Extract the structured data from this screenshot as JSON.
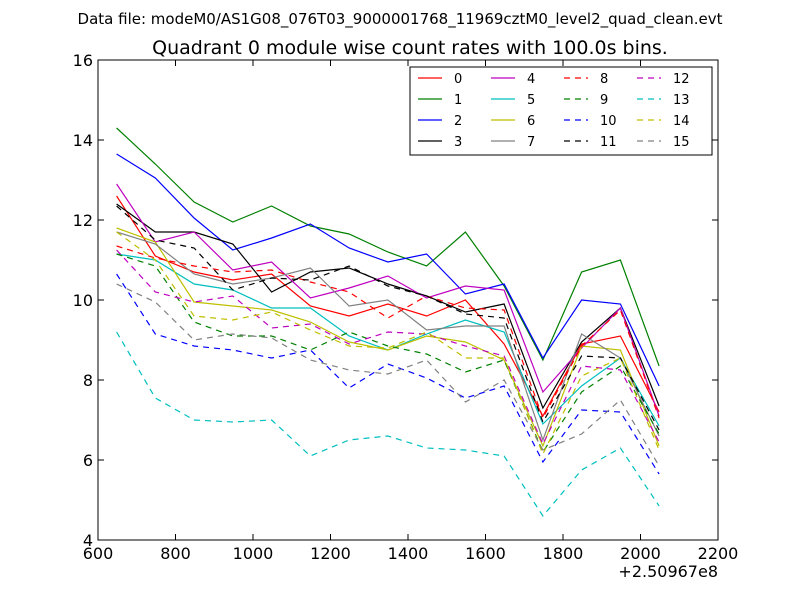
{
  "chart_data": {
    "type": "line",
    "suptitle": "Data file: modeM0/AS1G08_076T03_9000001768_11969cztM0_level2_quad_clean.evt",
    "title": "Quadrant 0 module wise count rates with 100.0s bins.",
    "xlabel": "",
    "ylabel": "",
    "offset_label": "+2.50967e8",
    "xlim": [
      600,
      2200
    ],
    "ylim": [
      4,
      16
    ],
    "xticks": [
      600,
      800,
      1000,
      1200,
      1400,
      1600,
      1800,
      2000,
      2200
    ],
    "yticks": [
      4,
      6,
      8,
      10,
      12,
      14,
      16
    ],
    "legend_position": "top-right",
    "x": [
      648,
      748,
      848,
      948,
      1048,
      1148,
      1248,
      1348,
      1448,
      1548,
      1648,
      1748,
      1848,
      1948,
      2048
    ],
    "series": [
      {
        "name": "0",
        "color": "#ff0000",
        "dash": "solid",
        "values": [
          12.6,
          11.1,
          10.7,
          10.5,
          10.65,
          9.85,
          9.6,
          9.9,
          9.6,
          10.0,
          8.9,
          7.1,
          8.9,
          9.1,
          7.2
        ]
      },
      {
        "name": "1",
        "color": "#008000",
        "dash": "solid",
        "values": [
          14.3,
          13.4,
          12.45,
          11.95,
          12.35,
          11.85,
          11.65,
          11.2,
          10.85,
          11.7,
          10.35,
          8.5,
          10.7,
          11.0,
          8.35
        ]
      },
      {
        "name": "2",
        "color": "#0000ff",
        "dash": "solid",
        "values": [
          13.65,
          13.05,
          12.05,
          11.25,
          11.55,
          11.9,
          11.3,
          10.95,
          11.15,
          10.15,
          10.4,
          8.55,
          10.0,
          9.9,
          7.85
        ]
      },
      {
        "name": "3",
        "color": "#000000",
        "dash": "solid",
        "values": [
          12.4,
          11.7,
          11.7,
          11.4,
          10.2,
          10.7,
          10.8,
          10.4,
          10.1,
          9.7,
          9.9,
          7.3,
          8.95,
          9.8,
          7.35
        ]
      },
      {
        "name": "4",
        "color": "#bf00bf",
        "dash": "solid",
        "values": [
          12.9,
          11.45,
          11.7,
          10.75,
          10.95,
          10.05,
          10.3,
          10.6,
          10.05,
          10.35,
          10.25,
          7.7,
          8.8,
          9.8,
          7.1
        ]
      },
      {
        "name": "5",
        "color": "#00bfbf",
        "dash": "solid",
        "values": [
          11.15,
          11.0,
          10.4,
          10.25,
          9.8,
          9.8,
          9.1,
          8.75,
          9.15,
          9.5,
          9.2,
          6.9,
          7.85,
          8.55,
          6.85
        ]
      },
      {
        "name": "6",
        "color": "#bfbf00",
        "dash": "solid",
        "values": [
          11.8,
          11.45,
          9.95,
          9.85,
          9.75,
          9.45,
          8.95,
          8.75,
          9.1,
          8.95,
          8.5,
          6.35,
          8.85,
          8.75,
          6.35
        ]
      },
      {
        "name": "7",
        "color": "#808080",
        "dash": "solid",
        "values": [
          11.7,
          11.4,
          10.65,
          10.4,
          10.55,
          10.8,
          9.85,
          10.0,
          9.25,
          9.35,
          9.35,
          6.5,
          9.15,
          8.55,
          6.6
        ]
      },
      {
        "name": "8",
        "color": "#ff0000",
        "dash": "dashed",
        "values": [
          11.35,
          11.05,
          10.85,
          10.7,
          10.75,
          10.45,
          10.2,
          9.55,
          10.1,
          9.8,
          9.75,
          7.05,
          8.85,
          9.75,
          7.05
        ]
      },
      {
        "name": "9",
        "color": "#008000",
        "dash": "dashed",
        "values": [
          11.15,
          10.85,
          9.45,
          9.1,
          9.1,
          8.75,
          9.2,
          8.85,
          8.65,
          8.2,
          8.5,
          6.2,
          7.7,
          8.35,
          6.65
        ]
      },
      {
        "name": "10",
        "color": "#0000ff",
        "dash": "dashed",
        "values": [
          10.65,
          9.15,
          8.85,
          8.75,
          8.55,
          8.75,
          7.8,
          8.4,
          8.05,
          7.55,
          7.85,
          5.95,
          7.25,
          7.2,
          5.65
        ]
      },
      {
        "name": "11",
        "color": "#000000",
        "dash": "dashed",
        "values": [
          12.35,
          11.5,
          11.3,
          10.25,
          10.55,
          10.5,
          10.85,
          10.35,
          10.1,
          9.65,
          9.55,
          6.95,
          8.6,
          8.55,
          6.75
        ]
      },
      {
        "name": "12",
        "color": "#bf00bf",
        "dash": "dashed",
        "values": [
          11.25,
          10.2,
          9.95,
          10.1,
          9.3,
          9.4,
          8.9,
          9.2,
          9.15,
          8.85,
          8.6,
          6.4,
          8.35,
          8.25,
          6.45
        ]
      },
      {
        "name": "13",
        "color": "#00bfbf",
        "dash": "dashed",
        "values": [
          9.2,
          7.55,
          7.0,
          6.95,
          7.0,
          6.1,
          6.5,
          6.6,
          6.3,
          6.25,
          6.1,
          4.6,
          5.75,
          6.3,
          4.85
        ]
      },
      {
        "name": "14",
        "color": "#bfbf00",
        "dash": "dashed",
        "values": [
          11.7,
          11.0,
          9.6,
          9.5,
          9.7,
          9.25,
          8.85,
          8.8,
          9.2,
          8.55,
          8.55,
          6.15,
          8.1,
          8.55,
          6.25
        ]
      },
      {
        "name": "15",
        "color": "#808080",
        "dash": "dashed",
        "values": [
          10.4,
          9.95,
          9.0,
          9.15,
          9.05,
          8.5,
          8.25,
          8.15,
          8.5,
          7.45,
          8.0,
          6.25,
          6.65,
          7.5,
          5.85
        ]
      }
    ]
  }
}
